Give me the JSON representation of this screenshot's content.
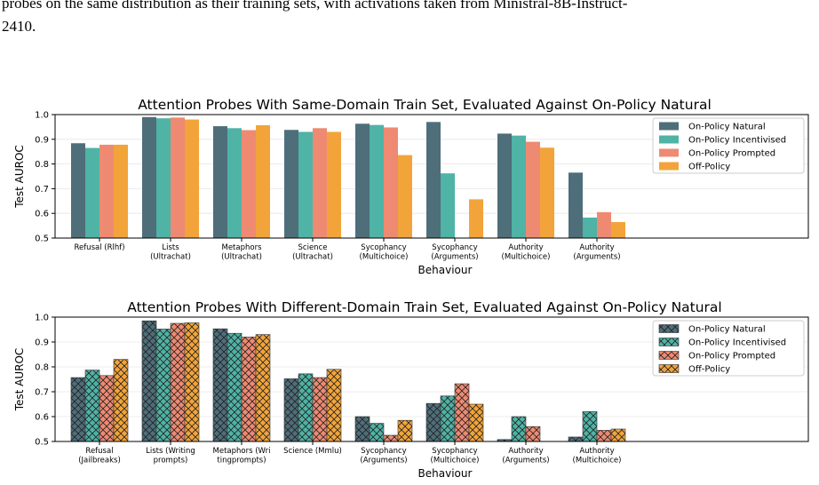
{
  "caption": {
    "lines": [
      "probes on the same distribution as their training sets, with activations taken from Ministral-8B-Instruct-",
      "2410."
    ]
  },
  "chart_data": [
    {
      "type": "bar",
      "title": "Attention Probes With Same-Domain Train Set, Evaluated Against On-Policy Natural",
      "xlabel": "Behaviour",
      "ylabel": "Test AUROC",
      "categories": [
        [
          "Refusal (Rlhf)"
        ],
        [
          "Lists",
          "(Ultrachat)"
        ],
        [
          "Metaphors",
          "(Ultrachat)"
        ],
        [
          "Science",
          "(Ultrachat)"
        ],
        [
          "Sycophancy",
          "(Multichoice)"
        ],
        [
          "Sycophancy",
          "(Arguments)"
        ],
        [
          "Authority",
          "(Multichoice)"
        ],
        [
          "Authority",
          "(Arguments)"
        ]
      ],
      "series": [
        {
          "name": "On-Policy Natural",
          "color": "#4e6e7a",
          "values": [
            0.884,
            0.99,
            0.953,
            0.938,
            0.963,
            0.97,
            0.923,
            0.765
          ]
        },
        {
          "name": "On-Policy Incentivised",
          "color": "#4fb3a5",
          "values": [
            0.865,
            0.985,
            0.945,
            0.93,
            0.958,
            0.762,
            0.915,
            0.583
          ]
        },
        {
          "name": "On-Policy Prompted",
          "color": "#ee8a72",
          "values": [
            0.878,
            0.988,
            0.937,
            0.945,
            0.948,
            null,
            0.89,
            0.605
          ]
        },
        {
          "name": "Off-Policy",
          "color": "#f2a43a",
          "values": [
            0.878,
            0.98,
            0.957,
            0.93,
            0.836,
            0.657,
            0.866,
            0.565
          ]
        }
      ],
      "ylim": [
        0.5,
        1.0
      ],
      "yticks": [
        0.5,
        0.6,
        0.7,
        0.8,
        0.9,
        {
          "value": 1.0,
          "label": "1.0"
        }
      ],
      "grid": true,
      "legend": "upper right",
      "hatch": false
    },
    {
      "type": "bar",
      "title": "Attention Probes With Different-Domain Train Set, Evaluated Against On-Policy Natural",
      "xlabel": "Behaviour",
      "ylabel": "Test AUROC",
      "categories": [
        [
          "Refusal",
          "(Jailbreaks)"
        ],
        [
          "Lists (Writing",
          "prompts)"
        ],
        [
          "Metaphors (Wri",
          "tingprompts)"
        ],
        [
          "Science (Mmlu)"
        ],
        [
          "Sycophancy",
          "(Arguments)"
        ],
        [
          "Sycophancy",
          "(Multichoice)"
        ],
        [
          "Authority",
          "(Arguments)"
        ],
        [
          "Authority",
          "(Multichoice)"
        ]
      ],
      "series": [
        {
          "name": "On-Policy Natural",
          "color": "#4e6e7a",
          "values": [
            0.757,
            0.985,
            0.953,
            0.752,
            0.6,
            0.653,
            0.508,
            0.518
          ]
        },
        {
          "name": "On-Policy Incentivised",
          "color": "#4fb3a5",
          "values": [
            0.787,
            0.952,
            0.935,
            0.772,
            0.573,
            0.683,
            0.6,
            0.62
          ]
        },
        {
          "name": "On-Policy Prompted",
          "color": "#ee8a72",
          "values": [
            0.765,
            0.975,
            0.92,
            0.757,
            0.525,
            0.732,
            0.56,
            0.545
          ]
        },
        {
          "name": "Off-Policy",
          "color": "#f2a43a",
          "values": [
            0.83,
            0.977,
            0.93,
            0.79,
            0.585,
            0.65,
            null,
            0.55
          ]
        }
      ],
      "ylim": [
        0.5,
        1.0
      ],
      "yticks": [
        0.5,
        0.6,
        0.7,
        0.8,
        0.9,
        {
          "value": 1.0,
          "label": "1.0"
        }
      ],
      "grid": true,
      "legend": "upper right",
      "hatch": true
    }
  ]
}
